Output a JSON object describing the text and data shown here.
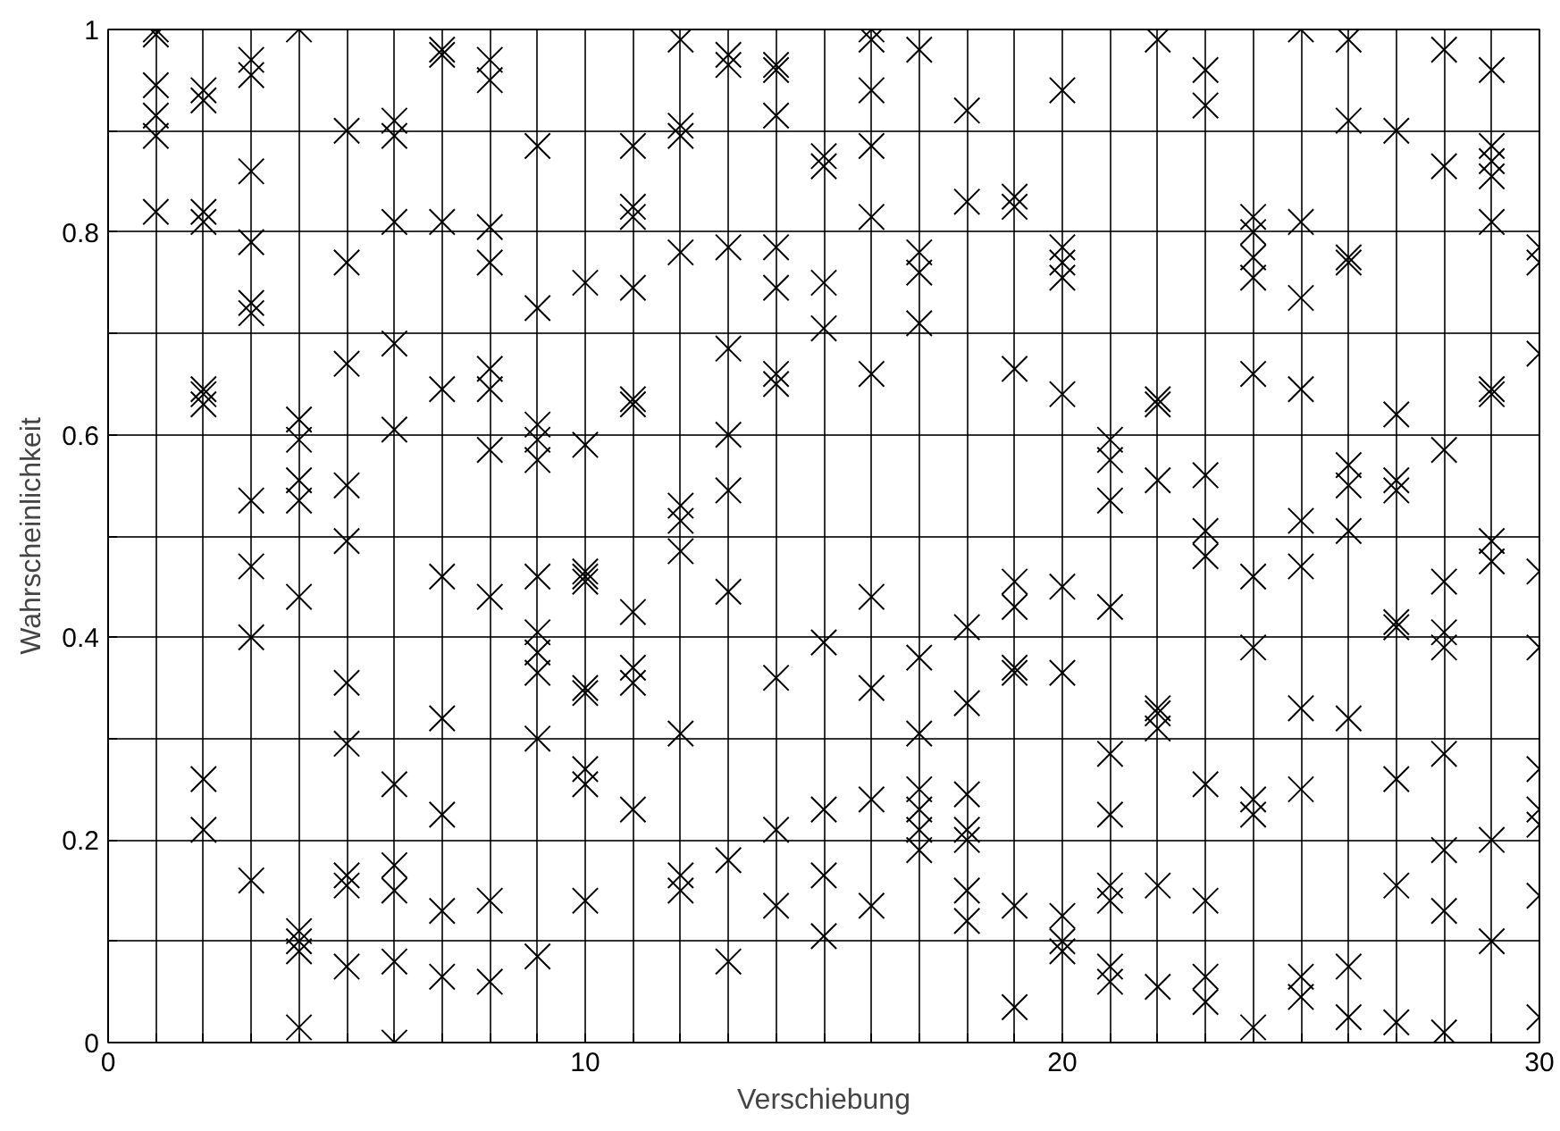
{
  "chart_data": {
    "type": "scatter",
    "xlabel": "Verschiebung",
    "ylabel": "Wahrscheinlichkeit",
    "xlim": [
      0,
      30
    ],
    "ylim": [
      0,
      1
    ],
    "xticks": [
      0,
      {
        "value": 1,
        "label": null
      },
      {
        "value": 2,
        "label": null
      },
      {
        "value": 3,
        "label": null
      },
      {
        "value": 4,
        "label": null
      },
      {
        "value": 5,
        "label": null
      },
      {
        "value": 6,
        "label": null
      },
      {
        "value": 7,
        "label": null
      },
      {
        "value": 8,
        "label": null
      },
      {
        "value": 9,
        "label": null
      },
      10,
      {
        "value": 11,
        "label": null
      },
      {
        "value": 12,
        "label": null
      },
      {
        "value": 13,
        "label": null
      },
      {
        "value": 14,
        "label": null
      },
      {
        "value": 15,
        "label": null
      },
      {
        "value": 16,
        "label": null
      },
      {
        "value": 17,
        "label": null
      },
      {
        "value": 18,
        "label": null
      },
      {
        "value": 19,
        "label": null
      },
      20,
      {
        "value": 21,
        "label": null
      },
      {
        "value": 22,
        "label": null
      },
      {
        "value": 23,
        "label": null
      },
      {
        "value": 24,
        "label": null
      },
      {
        "value": 25,
        "label": null
      },
      {
        "value": 26,
        "label": null
      },
      {
        "value": 27,
        "label": null
      },
      {
        "value": 28,
        "label": null
      },
      {
        "value": 29,
        "label": null
      },
      30
    ],
    "yticks": [
      0,
      {
        "value": 0.1,
        "label": null
      },
      0.2,
      {
        "value": 0.3,
        "label": null
      },
      0.4,
      {
        "value": 0.5,
        "label": null
      },
      0.6,
      {
        "value": 0.7,
        "label": null
      },
      0.8,
      {
        "value": 0.9,
        "label": null
      },
      1
    ],
    "grid": true,
    "marker": "cross",
    "series": [
      {
        "color": "#000000",
        "x": [
          1,
          1,
          1,
          1,
          1,
          1,
          2,
          2,
          2,
          2,
          2,
          2,
          2,
          2,
          2,
          3,
          3,
          3,
          3,
          3,
          3,
          3,
          3,
          3,
          3,
          4,
          4,
          4,
          4,
          4,
          4,
          4,
          4,
          4,
          4,
          5,
          5,
          5,
          5,
          5,
          5,
          5,
          5,
          5,
          5,
          6,
          6,
          6,
          6,
          6,
          6,
          6,
          6,
          6,
          6,
          7,
          7,
          7,
          7,
          7,
          7,
          7,
          7,
          7,
          8,
          8,
          8,
          8,
          8,
          8,
          8,
          8,
          8,
          8,
          9,
          9,
          9,
          9,
          9,
          9,
          9,
          9,
          9,
          9,
          9,
          10,
          10,
          10,
          10,
          10,
          10,
          10,
          10,
          10,
          10,
          11,
          11,
          11,
          11,
          11,
          11,
          11,
          11,
          11,
          11,
          12,
          12,
          12,
          12,
          12,
          12,
          12,
          12,
          12,
          12,
          13,
          13,
          13,
          13,
          13,
          13,
          13,
          13,
          13,
          14,
          14,
          14,
          14,
          14,
          14,
          14,
          14,
          14,
          14,
          15,
          15,
          15,
          15,
          15,
          15,
          15,
          15,
          16,
          16,
          16,
          16,
          16,
          16,
          16,
          16,
          16,
          16,
          17,
          17,
          17,
          17,
          17,
          17,
          17,
          17,
          17,
          17,
          18,
          18,
          18,
          18,
          18,
          18,
          18,
          18,
          18,
          19,
          19,
          19,
          19,
          19,
          19,
          19,
          19,
          19,
          20,
          20,
          20,
          20,
          20,
          20,
          20,
          20,
          20,
          20,
          21,
          21,
          21,
          21,
          21,
          21,
          21,
          21,
          21,
          21,
          22,
          22,
          22,
          22,
          22,
          22,
          22,
          22,
          22,
          23,
          23,
          23,
          23,
          23,
          23,
          23,
          23,
          23,
          24,
          24,
          24,
          24,
          24,
          24,
          24,
          24,
          24,
          24,
          25,
          25,
          25,
          25,
          25,
          25,
          25,
          25,
          25,
          25,
          26,
          26,
          26,
          26,
          26,
          26,
          26,
          26,
          26,
          26,
          27,
          27,
          27,
          27,
          27,
          27,
          27,
          27,
          27,
          28,
          28,
          28,
          28,
          28,
          28,
          28,
          28,
          28,
          28,
          29,
          29,
          29,
          29,
          29,
          29,
          29,
          29,
          29,
          29,
          29,
          30,
          30,
          30,
          30,
          30,
          30,
          30,
          30,
          30,
          30
        ],
        "values": [
          1.0,
          0.995,
          0.945,
          0.915,
          0.895,
          0.82,
          0.94,
          0.93,
          0.82,
          0.81,
          0.645,
          0.64,
          0.63,
          0.26,
          0.21,
          0.97,
          0.955,
          0.86,
          0.79,
          0.73,
          0.72,
          0.535,
          0.47,
          0.4,
          0.16,
          1.0,
          0.615,
          0.595,
          0.555,
          0.535,
          0.44,
          0.11,
          0.1,
          0.09,
          0.015,
          0.9,
          0.77,
          0.67,
          0.55,
          0.495,
          0.355,
          0.295,
          0.165,
          0.155,
          0.075,
          0.91,
          0.895,
          0.81,
          0.69,
          0.605,
          0.255,
          0.175,
          0.15,
          0.08,
          0.0,
          0.98,
          0.975,
          0.81,
          0.645,
          0.46,
          0.32,
          0.225,
          0.13,
          0.065,
          0.97,
          0.95,
          0.805,
          0.77,
          0.665,
          0.645,
          0.585,
          0.44,
          0.14,
          0.06,
          0.885,
          0.725,
          0.61,
          0.595,
          0.575,
          0.46,
          0.405,
          0.385,
          0.365,
          0.3,
          0.085,
          0.75,
          0.59,
          0.465,
          0.46,
          0.455,
          0.35,
          0.345,
          0.27,
          0.255,
          0.14,
          0.885,
          0.825,
          0.815,
          0.745,
          0.635,
          0.63,
          0.425,
          0.37,
          0.355,
          0.23,
          0.99,
          0.905,
          0.895,
          0.78,
          0.53,
          0.515,
          0.485,
          0.305,
          0.165,
          0.15,
          0.975,
          0.965,
          0.785,
          0.685,
          0.6,
          0.545,
          0.445,
          0.18,
          0.08,
          0.965,
          0.96,
          0.915,
          0.785,
          0.745,
          0.66,
          0.65,
          0.36,
          0.21,
          0.135,
          0.875,
          0.865,
          0.75,
          0.705,
          0.395,
          0.23,
          0.165,
          0.105,
          1.0,
          0.99,
          0.94,
          0.885,
          0.815,
          0.66,
          0.44,
          0.35,
          0.24,
          0.135,
          0.98,
          0.78,
          0.76,
          0.71,
          0.38,
          0.305,
          0.25,
          0.23,
          0.21,
          0.19,
          0.92,
          0.83,
          0.41,
          0.335,
          0.245,
          0.21,
          0.2,
          0.15,
          0.12,
          0.835,
          0.825,
          0.665,
          0.455,
          0.43,
          0.37,
          0.365,
          0.135,
          0.035,
          0.94,
          0.785,
          0.77,
          0.755,
          0.64,
          0.45,
          0.365,
          0.125,
          0.1,
          0.09,
          0.595,
          0.575,
          0.535,
          0.43,
          0.285,
          0.225,
          0.155,
          0.14,
          0.075,
          0.06,
          0.99,
          0.635,
          0.63,
          0.555,
          0.33,
          0.325,
          0.31,
          0.155,
          0.055,
          0.96,
          0.925,
          0.56,
          0.505,
          0.48,
          0.255,
          0.14,
          0.065,
          0.04,
          0.815,
          0.8,
          0.775,
          0.755,
          0.66,
          0.46,
          0.39,
          0.24,
          0.225,
          0.015,
          1.0,
          0.81,
          0.735,
          0.645,
          0.515,
          0.47,
          0.33,
          0.25,
          0.065,
          0.045,
          0.99,
          0.91,
          0.775,
          0.77,
          0.57,
          0.55,
          0.505,
          0.32,
          0.075,
          0.025,
          0.9,
          0.62,
          0.555,
          0.545,
          0.415,
          0.41,
          0.26,
          0.155,
          0.02,
          0.98,
          0.865,
          0.585,
          0.455,
          0.405,
          0.39,
          0.285,
          0.19,
          0.13,
          0.01,
          0.96,
          0.885,
          0.87,
          0.855,
          0.81,
          0.645,
          0.64,
          0.495,
          0.475,
          0.2,
          0.1,
          0.785,
          0.77,
          0.68,
          0.465,
          0.39,
          0.27,
          0.23,
          0.215,
          0.145,
          0.025
        ]
      }
    ]
  }
}
